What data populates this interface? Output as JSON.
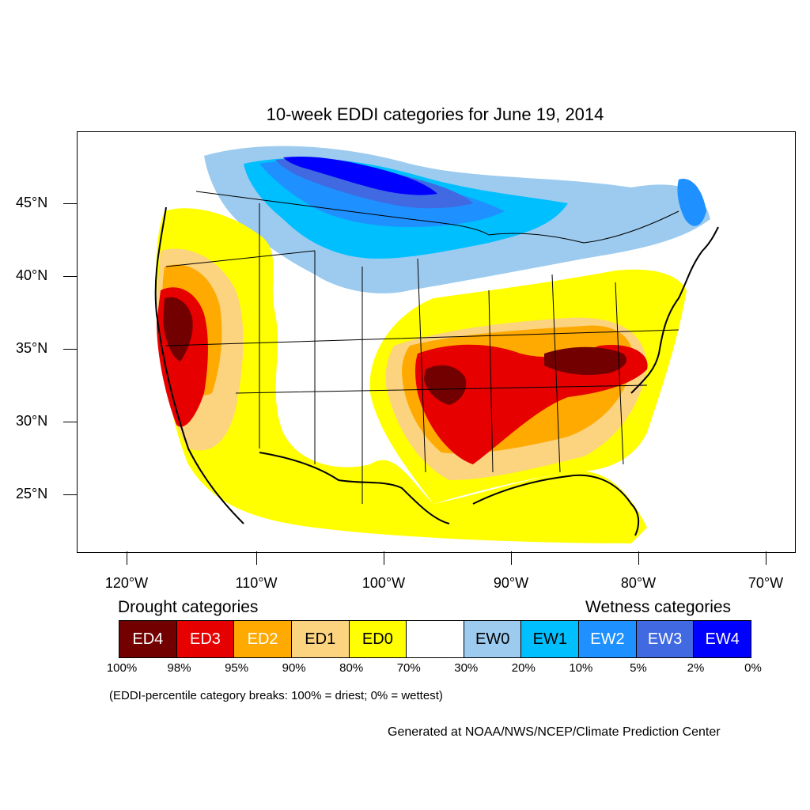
{
  "title": "10-week EDDI categories for June 19, 2014",
  "lat_labels": [
    "45°N",
    "40°N",
    "35°N",
    "30°N",
    "25°N"
  ],
  "lon_labels": [
    "120°W",
    "110°W",
    "100°W",
    "90°W",
    "80°W",
    "70°W"
  ],
  "drought_heading": "Drought categories",
  "wetness_heading": "Wetness categories",
  "categories": [
    {
      "label": "ED4",
      "color": "#730000",
      "text_color": "#ffffff"
    },
    {
      "label": "ED3",
      "color": "#e60000",
      "text_color": "#ffffff"
    },
    {
      "label": "ED2",
      "color": "#ffaa00",
      "text_color": "#ffffff"
    },
    {
      "label": "ED1",
      "color": "#fcd37f",
      "text_color": "#000000"
    },
    {
      "label": "ED0",
      "color": "#ffff00",
      "text_color": "#000000"
    },
    {
      "label": "",
      "color": "#ffffff",
      "text_color": "#000000"
    },
    {
      "label": "EW0",
      "color": "#9ccbef",
      "text_color": "#000000"
    },
    {
      "label": "EW1",
      "color": "#00bfff",
      "text_color": "#000000"
    },
    {
      "label": "EW2",
      "color": "#1e90ff",
      "text_color": "#ffffff"
    },
    {
      "label": "EW3",
      "color": "#4169e1",
      "text_color": "#ffffff"
    },
    {
      "label": "EW4",
      "color": "#0000ff",
      "text_color": "#ffffff"
    }
  ],
  "percent_breaks": [
    "100%",
    "98%",
    "95%",
    "90%",
    "80%",
    "70%",
    "30%",
    "20%",
    "10%",
    "5%",
    "2%",
    "0%"
  ],
  "note": "(EDDI-percentile category breaks: 100% = driest; 0% = wettest)",
  "credit": "Generated at NOAA/NWS/NCEP/Climate Prediction Center"
}
